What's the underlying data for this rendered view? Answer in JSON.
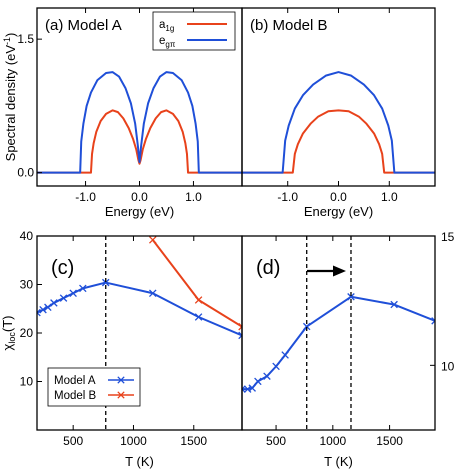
{
  "colors": {
    "red": "#e8421b",
    "blue": "#1f4fd8"
  },
  "chart_data": [
    {
      "type": "line",
      "panel_label": "(a) Model A",
      "xlabel": "Energy (eV)",
      "ylabel": "Spectral density (eV-1)",
      "xlim": [
        -1.9,
        1.9
      ],
      "ylim": [
        -0.15,
        1.85
      ],
      "xticks": [
        -1.0,
        0.0,
        1.0
      ],
      "xtick_labels": [
        "-1.0",
        "0.0",
        "1.0"
      ],
      "yticks": [
        0.0,
        1.5
      ],
      "ytick_labels": [
        "0.0",
        "1.5"
      ],
      "legend": [
        "a1g",
        "egπ"
      ],
      "series": [
        {
          "name": "a1g",
          "color": "#e8421b",
          "x": [
            -1.9,
            -0.9,
            -0.88,
            -0.85,
            -0.8,
            -0.72,
            -0.62,
            -0.5,
            -0.4,
            -0.3,
            -0.2,
            -0.12,
            -0.06,
            -0.02,
            0.0,
            0.02,
            0.06,
            0.12,
            0.2,
            0.3,
            0.4,
            0.5,
            0.62,
            0.72,
            0.8,
            0.85,
            0.88,
            0.9,
            1.9
          ],
          "y": [
            0.0,
            0.0,
            0.21,
            0.33,
            0.46,
            0.58,
            0.66,
            0.7,
            0.68,
            0.61,
            0.5,
            0.38,
            0.26,
            0.14,
            0.1,
            0.14,
            0.26,
            0.38,
            0.5,
            0.61,
            0.68,
            0.7,
            0.66,
            0.58,
            0.46,
            0.33,
            0.21,
            0.0,
            0.0
          ]
        },
        {
          "name": "egπ",
          "color": "#1f4fd8",
          "x": [
            -1.9,
            -1.1,
            -1.08,
            -1.04,
            -0.98,
            -0.9,
            -0.78,
            -0.62,
            -0.5,
            -0.38,
            -0.26,
            -0.16,
            -0.08,
            -0.03,
            0.0,
            0.03,
            0.08,
            0.16,
            0.26,
            0.38,
            0.5,
            0.62,
            0.78,
            0.9,
            0.98,
            1.04,
            1.08,
            1.1,
            1.9
          ],
          "y": [
            0.0,
            0.0,
            0.35,
            0.55,
            0.75,
            0.9,
            1.04,
            1.12,
            1.13,
            1.08,
            0.95,
            0.78,
            0.55,
            0.3,
            0.12,
            0.3,
            0.55,
            0.78,
            0.95,
            1.08,
            1.13,
            1.12,
            1.04,
            0.9,
            0.75,
            0.55,
            0.35,
            0.0,
            0.0
          ]
        }
      ]
    },
    {
      "type": "line",
      "panel_label": "(b) Model B",
      "xlabel": "Energy (eV)",
      "xlim": [
        -1.9,
        1.9
      ],
      "ylim": [
        -0.15,
        1.85
      ],
      "xticks": [
        -1.0,
        0.0,
        1.0
      ],
      "xtick_labels": [
        "-1.0",
        "0.0",
        "1.0"
      ],
      "series": [
        {
          "name": "a1g",
          "color": "#e8421b",
          "x": [
            -1.9,
            -0.9,
            -0.86,
            -0.8,
            -0.7,
            -0.55,
            -0.4,
            -0.2,
            0.0,
            0.2,
            0.4,
            0.55,
            0.7,
            0.8,
            0.86,
            0.9,
            1.9
          ],
          "y": [
            0.0,
            0.0,
            0.21,
            0.32,
            0.44,
            0.55,
            0.63,
            0.69,
            0.7,
            0.69,
            0.63,
            0.55,
            0.44,
            0.32,
            0.21,
            0.0,
            0.0
          ]
        },
        {
          "name": "egπ",
          "color": "#1f4fd8",
          "x": [
            -1.9,
            -1.1,
            -1.05,
            -0.98,
            -0.86,
            -0.7,
            -0.5,
            -0.25,
            0.0,
            0.25,
            0.5,
            0.7,
            0.86,
            0.98,
            1.05,
            1.1,
            1.9
          ],
          "y": [
            0.0,
            0.0,
            0.36,
            0.53,
            0.72,
            0.87,
            0.99,
            1.09,
            1.13,
            1.09,
            0.99,
            0.87,
            0.72,
            0.53,
            0.36,
            0.0,
            0.0
          ]
        }
      ]
    },
    {
      "type": "line",
      "panel_label": "(c)",
      "xlabel": "T (K)",
      "ylabel": "χloc(T)",
      "xlim": [
        200,
        1900
      ],
      "ylim": [
        0,
        40
      ],
      "xticks": [
        500,
        1000,
        1500
      ],
      "xtick_labels": [
        "500",
        "1000",
        "1500"
      ],
      "yticks": [
        10,
        20,
        30,
        40
      ],
      "ytick_labels": [
        "10",
        "20",
        "30",
        "40"
      ],
      "vline": 770,
      "legend": [
        "Model A",
        "Model B"
      ],
      "series": [
        {
          "name": "Model A",
          "color": "#1f4fd8",
          "marker": "x",
          "x": [
            200,
            250,
            290,
            340,
            420,
            500,
            580,
            770,
            1160,
            1540,
            1900
          ],
          "y": [
            24.2,
            24.8,
            25.3,
            26.2,
            27.2,
            28.2,
            29.2,
            30.4,
            28.2,
            23.3,
            19.5
          ]
        },
        {
          "name": "Model B",
          "color": "#e8421b",
          "marker": "x",
          "x": [
            1160,
            1540,
            1900
          ],
          "y": [
            39.2,
            26.8,
            21.3
          ]
        }
      ]
    },
    {
      "type": "line",
      "panel_label": "(d)",
      "xlabel": "T (K)",
      "xlim": [
        200,
        1900
      ],
      "ylim": [
        7.5,
        15
      ],
      "xticks": [
        500,
        1000,
        1500
      ],
      "xtick_labels": [
        "500",
        "1000",
        "1500"
      ],
      "yticks": [
        10,
        15
      ],
      "ytick_labels": [
        "10",
        "15"
      ],
      "vlines": [
        770,
        1160
      ],
      "series": [
        {
          "name": "Model A",
          "color": "#1f4fd8",
          "marker": "x",
          "x": [
            200,
            250,
            290,
            340,
            420,
            500,
            580,
            770,
            1160,
            1540,
            1900
          ],
          "y": [
            9.08,
            9.08,
            9.12,
            9.38,
            9.58,
            9.96,
            10.4,
            11.5,
            12.65,
            12.35,
            11.72
          ]
        }
      ]
    }
  ]
}
